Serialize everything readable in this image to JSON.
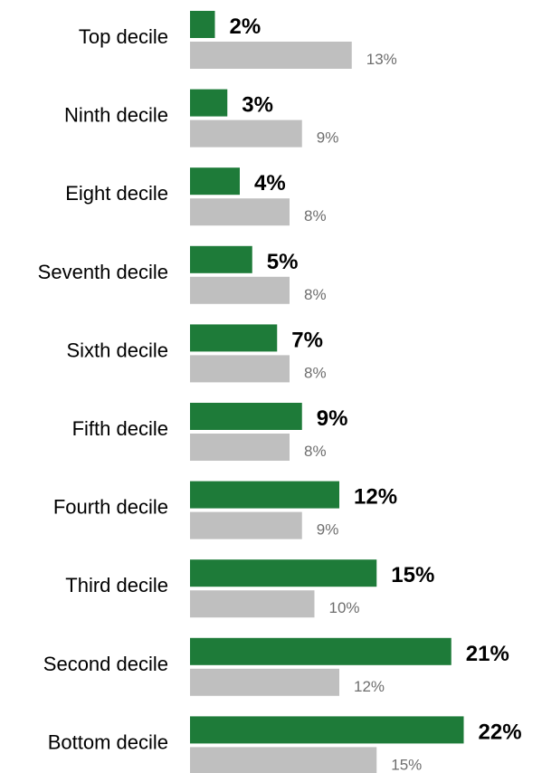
{
  "chart_data": {
    "type": "bar",
    "orientation": "horizontal",
    "title": "",
    "xlabel": "",
    "ylabel": "",
    "legend": "none",
    "grid": false,
    "xlim": [
      0,
      22
    ],
    "categories": [
      "Top decile",
      "Ninth decile",
      "Eight decile",
      "Seventh decile",
      "Sixth decile",
      "Fifth decile",
      "Fourth decile",
      "Third decile",
      "Second decile",
      "Bottom decile"
    ],
    "series": [
      {
        "values": [
          2,
          3,
          4,
          5,
          7,
          9,
          12,
          15,
          21,
          22
        ],
        "labels": [
          "2%",
          "3%",
          "4%",
          "5%",
          "7%",
          "9%",
          "12%",
          "15%",
          "21%",
          "22%"
        ],
        "color": "#1e7b39"
      },
      {
        "values": [
          13,
          9,
          8,
          8,
          8,
          8,
          9,
          10,
          12,
          15
        ],
        "labels": [
          "13%",
          "9%",
          "8%",
          "8%",
          "8%",
          "8%",
          "9%",
          "10%",
          "12%",
          "15%"
        ],
        "color": "#bfbfbf"
      }
    ]
  }
}
